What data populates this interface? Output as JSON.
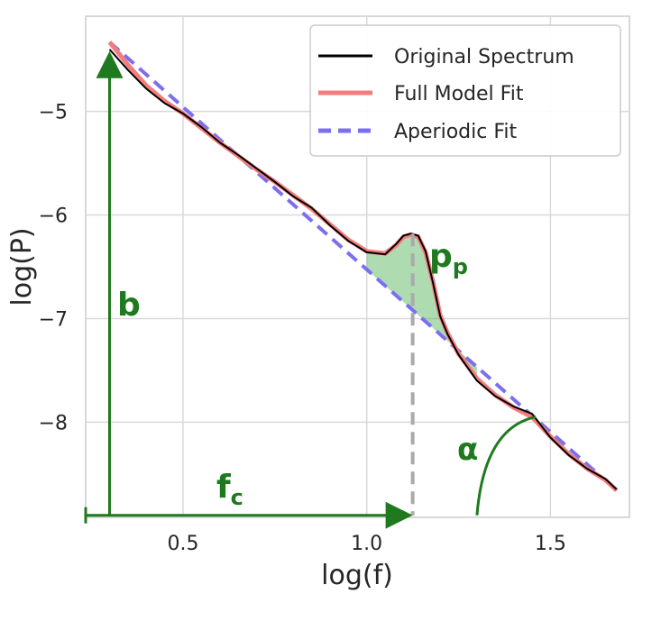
{
  "chart_data": {
    "type": "line",
    "xlabel": "log(f)",
    "ylabel": "log(P)",
    "xlim": [
      0.235,
      1.715
    ],
    "ylim": [
      -8.92,
      -4.08
    ],
    "xticks": [
      {
        "value": 0.5,
        "label": "0.5"
      },
      {
        "value": 1.0,
        "label": "1.0"
      },
      {
        "value": 1.5,
        "label": "1.5"
      }
    ],
    "yticks": [
      {
        "value": -5,
        "label": "−5"
      },
      {
        "value": -6,
        "label": "−6"
      },
      {
        "value": -7,
        "label": "−7"
      },
      {
        "value": -8,
        "label": "−8"
      }
    ],
    "grid": true,
    "legend": {
      "placement": "top-right",
      "entries": [
        {
          "name": "Original Spectrum",
          "color": "#000000",
          "style": "solid"
        },
        {
          "name": "Full Model Fit",
          "color": "#f47c7c",
          "style": "solid"
        },
        {
          "name": "Aperiodic Fit",
          "color": "#7b6ff0",
          "style": "dashed"
        }
      ]
    },
    "series": [
      {
        "name": "Original Spectrum",
        "color": "#000000",
        "x": [
          0.3,
          0.35,
          0.4,
          0.45,
          0.5,
          0.55,
          0.6,
          0.65,
          0.7,
          0.75,
          0.8,
          0.85,
          0.9,
          0.95,
          1.0,
          1.05,
          1.08,
          1.1,
          1.12,
          1.14,
          1.16,
          1.18,
          1.2,
          1.22,
          1.25,
          1.3,
          1.35,
          1.4,
          1.45,
          1.5,
          1.55,
          1.6,
          1.65,
          1.68
        ],
        "y": [
          -4.4,
          -4.6,
          -4.78,
          -4.92,
          -5.02,
          -5.15,
          -5.3,
          -5.42,
          -5.55,
          -5.68,
          -5.82,
          -5.93,
          -6.1,
          -6.25,
          -6.36,
          -6.38,
          -6.28,
          -6.2,
          -6.18,
          -6.2,
          -6.35,
          -6.65,
          -6.98,
          -7.15,
          -7.35,
          -7.6,
          -7.75,
          -7.85,
          -7.92,
          -8.15,
          -8.32,
          -8.45,
          -8.55,
          -8.65
        ]
      },
      {
        "name": "Full Model Fit",
        "color": "#f47c7c",
        "x": [
          0.3,
          0.35,
          0.4,
          0.45,
          0.5,
          0.55,
          0.6,
          0.65,
          0.7,
          0.75,
          0.8,
          0.85,
          0.9,
          0.95,
          1.0,
          1.05,
          1.08,
          1.1,
          1.12,
          1.14,
          1.16,
          1.18,
          1.2,
          1.22,
          1.25,
          1.3,
          1.35,
          1.4,
          1.45,
          1.5,
          1.55,
          1.6,
          1.65,
          1.68
        ],
        "y": [
          -4.33,
          -4.55,
          -4.75,
          -4.9,
          -5.02,
          -5.16,
          -5.3,
          -5.43,
          -5.56,
          -5.68,
          -5.81,
          -5.94,
          -6.09,
          -6.24,
          -6.35,
          -6.37,
          -6.29,
          -6.21,
          -6.19,
          -6.21,
          -6.36,
          -6.64,
          -6.97,
          -7.14,
          -7.34,
          -7.58,
          -7.74,
          -7.86,
          -7.95,
          -8.14,
          -8.31,
          -8.45,
          -8.56,
          -8.66
        ]
      },
      {
        "name": "Aperiodic Fit",
        "color": "#7b6ff0",
        "dashed": true,
        "x": [
          0.3,
          1.68
        ],
        "y": [
          -4.33,
          -8.66
        ]
      }
    ],
    "annotations": [
      {
        "text": "b",
        "kind": "offset-arrow",
        "x": 0.3,
        "y_from": -8.9,
        "y_to": -4.4
      },
      {
        "text": "f",
        "subscript": "c",
        "kind": "knee-arrow",
        "x_from": 0.235,
        "x_to": 1.125,
        "y": -8.9
      },
      {
        "text": "p",
        "subscript": "p",
        "kind": "peak-power",
        "x": 1.125,
        "y_from": -6.18,
        "y_to": -8.9
      },
      {
        "text": "α",
        "kind": "slope-angle",
        "x": 1.3,
        "y": -8.9
      }
    ]
  }
}
